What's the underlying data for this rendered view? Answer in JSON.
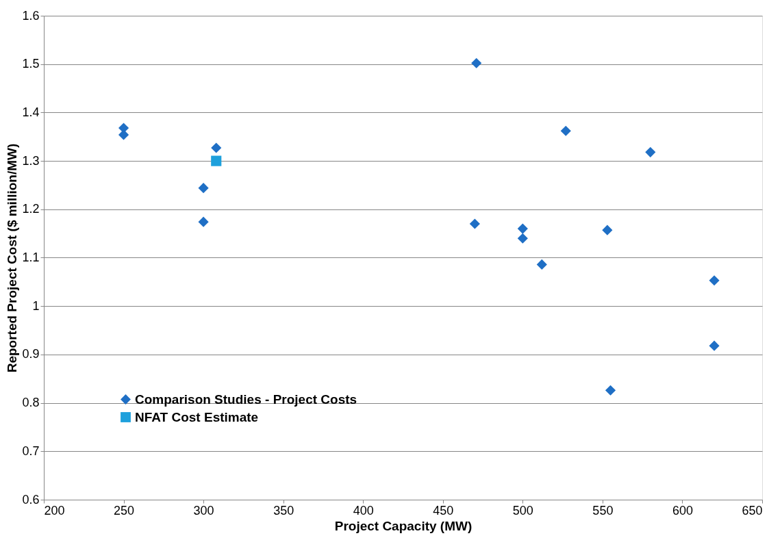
{
  "chart_data": {
    "type": "scatter",
    "xlabel": "Project Capacity (MW)",
    "ylabel": "Reported Project Cost ($ million/MW)",
    "xlim": [
      200,
      650
    ],
    "xticks": [
      200,
      250,
      300,
      350,
      400,
      450,
      500,
      550,
      600,
      650
    ],
    "ylim": [
      0.6,
      1.6
    ],
    "yticks": [
      {
        "value": 0.6,
        "label": "0.6"
      },
      {
        "value": 0.7,
        "label": "0.7"
      },
      {
        "value": 0.8,
        "label": "0.8"
      },
      {
        "value": 0.9,
        "label": "0.9"
      },
      {
        "value": 1,
        "label": "1"
      },
      {
        "value": 1.1,
        "label": "1.1"
      },
      {
        "value": 1.2,
        "label": "1.2"
      },
      {
        "value": 1.3,
        "label": "1.3"
      },
      {
        "value": 1.4,
        "label": "1.4"
      },
      {
        "value": 1.5,
        "label": "1.5"
      },
      {
        "value": 1.6,
        "label": "1.6"
      }
    ],
    "grid": "y",
    "legend": "bottom left",
    "series": [
      {
        "name": "Comparison Studies - Project Costs",
        "color": "#1f6fc5",
        "marker": "diamond",
        "x": [
          250,
          250,
          300,
          300,
          308,
          471,
          470,
          500,
          500,
          512,
          527,
          553,
          555,
          580,
          620,
          620
        ],
        "values": [
          1.368,
          1.354,
          1.244,
          1.174,
          1.327,
          1.502,
          1.17,
          1.16,
          1.14,
          1.086,
          1.362,
          1.157,
          0.826,
          1.318,
          1.053,
          0.918
        ]
      },
      {
        "name": "NFAT Cost Estimate",
        "color": "#1ea0dc",
        "marker": "square",
        "x": [
          308
        ],
        "values": [
          1.3
        ]
      }
    ]
  }
}
